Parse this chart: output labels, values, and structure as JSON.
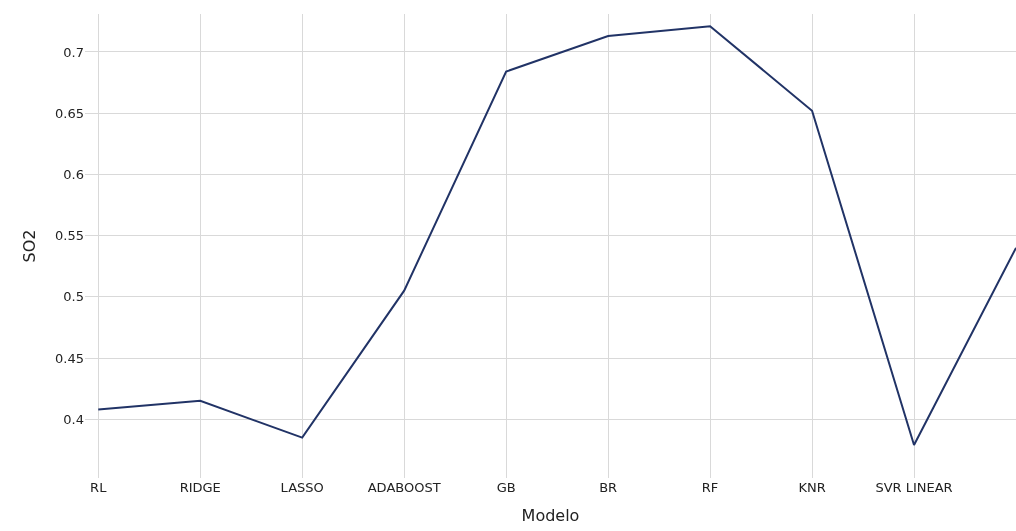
{
  "chart_data": {
    "type": "line",
    "xlabel": "Modelo",
    "ylabel": "SO2",
    "categories": [
      "RL",
      "RIDGE",
      "LASSO",
      "ADABOOST",
      "GB",
      "BR",
      "RF",
      "KNR",
      "SVR LINEAR",
      null
    ],
    "series": [
      {
        "color": "#213366",
        "values": [
          0.408,
          0.415,
          0.385,
          0.505,
          0.684,
          0.713,
          0.721,
          0.652,
          0.379,
          0.54
        ]
      }
    ],
    "ylim": [
      0.352,
      0.731
    ],
    "yticks": [
      0.4,
      0.45,
      0.5,
      0.55,
      0.6,
      0.65,
      0.7
    ],
    "grid": true,
    "legend": false,
    "marker": "none",
    "line_style": "solid"
  }
}
